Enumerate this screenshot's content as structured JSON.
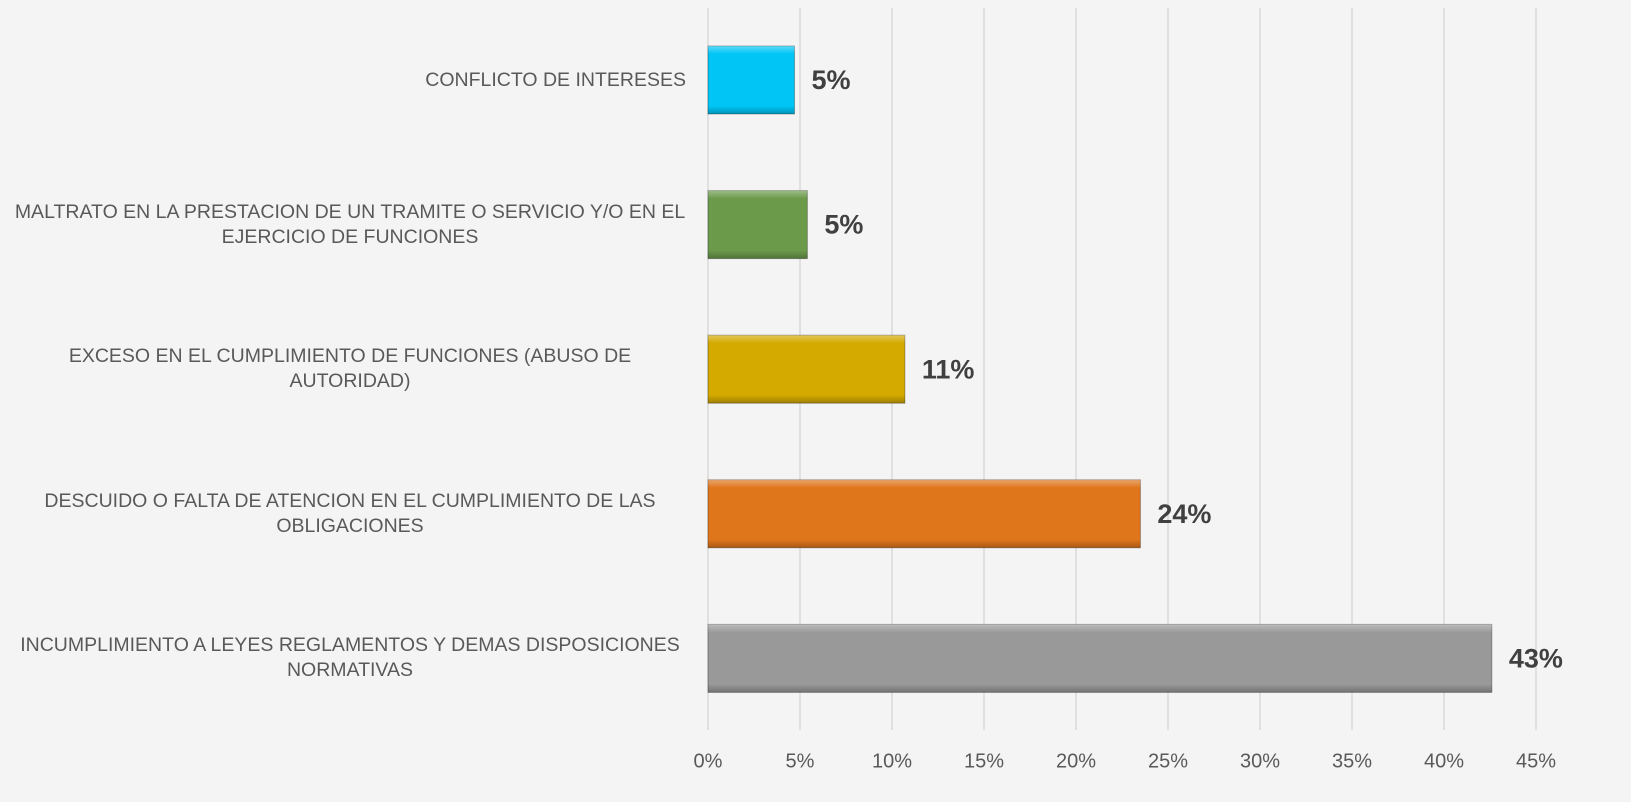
{
  "chart_data": {
    "type": "hbar",
    "categories": [
      "CONFLICTO DE INTERESES",
      "MALTRATO EN LA PRESTACION DE UN TRAMITE O SERVICIO Y/O EN EL EJERCICIO DE FUNCIONES",
      "EXCESO EN EL CUMPLIMIENTO DE FUNCIONES (ABUSO DE AUTORIDAD)",
      "DESCUIDO O FALTA DE ATENCION EN EL CUMPLIMIENTO DE LAS OBLIGACIONES",
      "INCUMPLIMIENTO A LEYES REGLAMENTOS Y DEMAS DISPOSICIONES NORMATIVAS"
    ],
    "values": [
      4.7,
      5.4,
      10.7,
      23.5,
      42.6
    ],
    "value_labels": [
      "5%",
      "5%",
      "11%",
      "24%",
      "43%"
    ],
    "colors": [
      "#00c5f5",
      "#6b9a4b",
      "#d4a900",
      "#e0761c",
      "#999999"
    ],
    "xlim": [
      0,
      45
    ],
    "xticks": [
      {
        "value": 0,
        "label": "0%"
      },
      {
        "value": 5,
        "label": "5%"
      },
      {
        "value": 10,
        "label": "10%"
      },
      {
        "value": 15,
        "label": "15%"
      },
      {
        "value": 20,
        "label": "20%"
      },
      {
        "value": 25,
        "label": "25%"
      },
      {
        "value": 30,
        "label": "30%"
      },
      {
        "value": 35,
        "label": "35%"
      },
      {
        "value": 40,
        "label": "40%"
      },
      {
        "value": 45,
        "label": "45%"
      }
    ],
    "grid": true
  }
}
